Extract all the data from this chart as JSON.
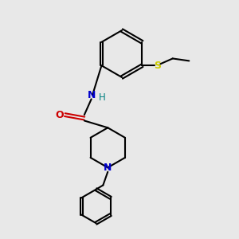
{
  "bg_color": "#e8e8e8",
  "bond_color": "#000000",
  "N_color": "#0000cc",
  "O_color": "#cc0000",
  "S_color": "#cccc00",
  "H_color": "#008080",
  "line_width": 1.5,
  "fig_size": [
    3.0,
    3.0
  ],
  "dpi": 100,
  "xlim": [
    0,
    10
  ],
  "ylim": [
    0,
    10
  ]
}
